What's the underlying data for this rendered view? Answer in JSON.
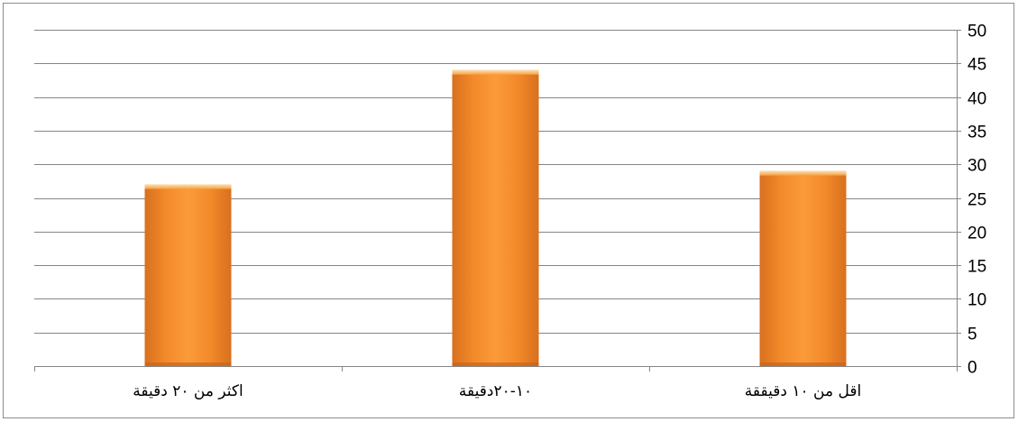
{
  "chart_data": {
    "type": "bar",
    "categories": [
      "اكثر من ٢٠ دقيقة",
      "١٠-٢٠دقيقة",
      "اقل من ١٠ دقيققة"
    ],
    "values": [
      27,
      44,
      29
    ],
    "ylim": [
      0,
      50
    ],
    "yticks": [
      0,
      5,
      10,
      15,
      20,
      25,
      30,
      35,
      40,
      45,
      50
    ],
    "y_axis_position": "right",
    "grid": true,
    "legend": "none",
    "title": "",
    "xlabel": "",
    "ylabel": "",
    "bar_color": "#f7922c",
    "bar_highlight_color": "#fbb15a",
    "bar_shadow_color": "#c8641a",
    "grid_color": "#868686"
  }
}
